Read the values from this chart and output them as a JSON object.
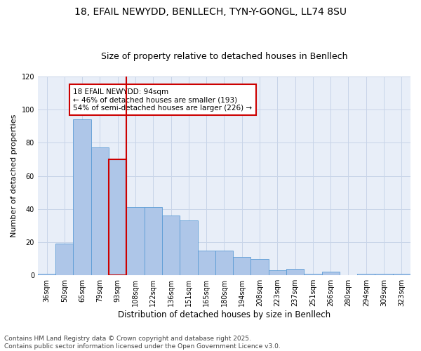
{
  "title_line1": "18, EFAIL NEWYDD, BENLLECH, TYN-Y-GONGL, LL74 8SU",
  "title_line2": "Size of property relative to detached houses in Benllech",
  "xlabel": "Distribution of detached houses by size in Benllech",
  "ylabel": "Number of detached properties",
  "categories": [
    "36sqm",
    "50sqm",
    "65sqm",
    "79sqm",
    "93sqm",
    "108sqm",
    "122sqm",
    "136sqm",
    "151sqm",
    "165sqm",
    "180sqm",
    "194sqm",
    "208sqm",
    "223sqm",
    "237sqm",
    "251sqm",
    "266sqm",
    "280sqm",
    "294sqm",
    "309sqm",
    "323sqm"
  ],
  "values": [
    1,
    19,
    94,
    77,
    70,
    41,
    41,
    36,
    33,
    15,
    15,
    11,
    10,
    3,
    4,
    1,
    2,
    0,
    1,
    1,
    1
  ],
  "bar_color": "#aec6e8",
  "bar_edge_color": "#5b9bd5",
  "highlight_bar_index": 4,
  "highlight_color": "#cc0000",
  "annotation_text": "18 EFAIL NEWYDD: 94sqm\n← 46% of detached houses are smaller (193)\n54% of semi-detached houses are larger (226) →",
  "annotation_box_color": "#cc0000",
  "ylim": [
    0,
    120
  ],
  "yticks": [
    0,
    20,
    40,
    60,
    80,
    100,
    120
  ],
  "grid_color": "#c8d4e8",
  "bg_color": "#e8eef8",
  "footer_text": "Contains HM Land Registry data © Crown copyright and database right 2025.\nContains public sector information licensed under the Open Government Licence v3.0.",
  "title_fontsize": 10,
  "subtitle_fontsize": 9,
  "xlabel_fontsize": 8.5,
  "ylabel_fontsize": 8,
  "tick_fontsize": 7,
  "annotation_fontsize": 7.5,
  "footer_fontsize": 6.5
}
